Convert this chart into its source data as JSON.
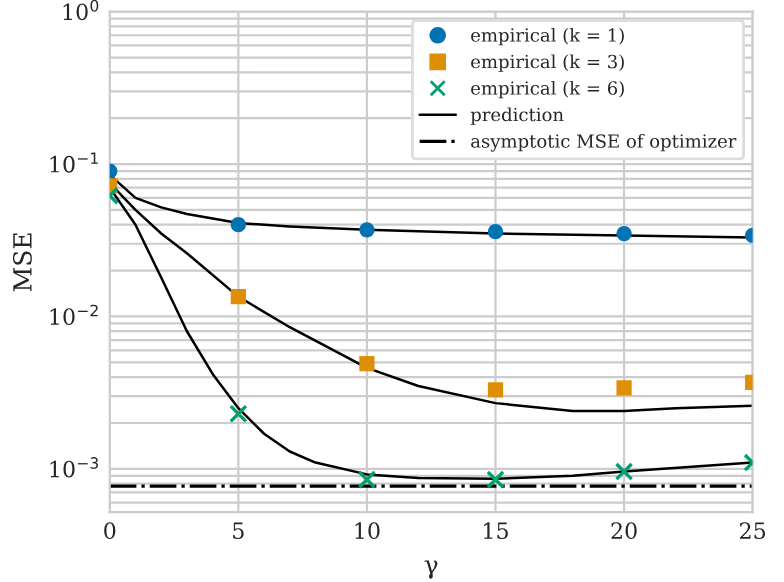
{
  "chart_data": {
    "type": "scatter",
    "xlabel": "γ",
    "ylabel": "MSE",
    "log": "y",
    "xlim": [
      0,
      25
    ],
    "xticks": [
      0,
      5,
      10,
      15,
      20,
      25
    ],
    "ylim": [
      0.00052,
      1
    ],
    "yticks": [
      {
        "value": 0.001,
        "label": "10$^{−3}$"
      },
      {
        "value": 0.01,
        "label": "10$^{−2}$"
      },
      {
        "value": 0.1,
        "label": "10$^{−1}$"
      },
      {
        "value": 1,
        "label": "10$^{0}$"
      }
    ],
    "grid": true,
    "legend": "top right",
    "series": [
      {
        "name": "empirical (k = 1)",
        "marker": "circle",
        "color": "#0173b2",
        "x": [
          0,
          5,
          10,
          15,
          20,
          25
        ],
        "values": [
          0.09,
          0.04,
          0.037,
          0.036,
          0.035,
          0.034
        ]
      },
      {
        "name": "empirical (k = 3)",
        "marker": "square",
        "color": "#de8f05",
        "x": [
          0,
          5,
          10,
          15,
          20,
          25
        ],
        "values": [
          0.072,
          0.0135,
          0.0049,
          0.0033,
          0.0034,
          0.0037
        ]
      },
      {
        "name": "empirical (k = 6)",
        "marker": "cross",
        "color": "#029e73",
        "x": [
          0,
          5,
          10,
          15,
          20,
          25
        ],
        "values": [
          0.062,
          0.0023,
          0.00085,
          0.00085,
          0.00096,
          0.0011
        ]
      },
      {
        "name": "prediction",
        "type": "line",
        "color": "#000000",
        "line_style": "solid",
        "x": [
          0,
          1,
          2,
          3,
          5,
          7,
          10,
          15,
          20,
          25
        ],
        "values": [
          0.085,
          0.06,
          0.052,
          0.047,
          0.041,
          0.039,
          0.037,
          0.035,
          0.034,
          0.033
        ]
      },
      {
        "type": "line",
        "color": "#000000",
        "line_style": "solid",
        "x": [
          0,
          1,
          2,
          3,
          5,
          7,
          10,
          12,
          15,
          18,
          20,
          22,
          25
        ],
        "values": [
          0.075,
          0.05,
          0.035,
          0.026,
          0.0135,
          0.0085,
          0.0046,
          0.0035,
          0.0027,
          0.0024,
          0.0024,
          0.0025,
          0.0026
        ]
      },
      {
        "type": "line",
        "color": "#000000",
        "line_style": "solid",
        "x": [
          0,
          1,
          2,
          3,
          4,
          5,
          6,
          7,
          8,
          10,
          12,
          15,
          18,
          20,
          25
        ],
        "values": [
          0.07,
          0.04,
          0.018,
          0.008,
          0.0042,
          0.0025,
          0.0017,
          0.0013,
          0.0011,
          0.00092,
          0.00087,
          0.00086,
          0.0009,
          0.00096,
          0.0011
        ]
      }
    ],
    "ref_lines": [
      {
        "axis": "y",
        "value": 0.00077,
        "label": "asymptotic MSE of optimizer",
        "color": "#000000",
        "line_style": "dashdot"
      }
    ]
  }
}
